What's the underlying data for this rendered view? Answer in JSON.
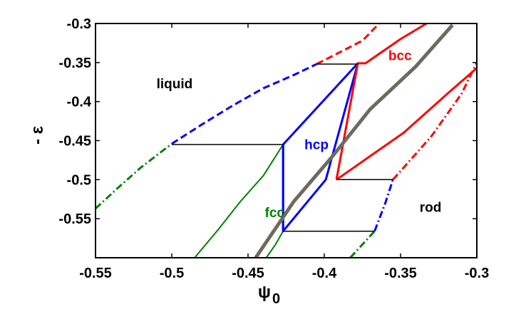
{
  "chart_data": {
    "type": "line",
    "xlabel": "ψ",
    "xlabel_sub": "0",
    "ylabel": "- ε",
    "xlim": [
      -0.55,
      -0.3
    ],
    "ylim": [
      -0.6,
      -0.3
    ],
    "xticks": [
      "-0.55",
      "-0.5",
      "-0.45",
      "-0.4",
      "-0.35",
      "-0.3"
    ],
    "yticks": [
      "-0.3",
      "-0.35",
      "-0.4",
      "-0.45",
      "-0.5",
      "-0.55"
    ],
    "grid": false,
    "region_labels": [
      {
        "text": "liquid",
        "color": "#000000",
        "x": -0.51,
        "y": -0.383
      },
      {
        "text": "bcc",
        "color": "#ff0000",
        "x": -0.358,
        "y": -0.347
      },
      {
        "text": "hcp",
        "color": "#0000ff",
        "x": -0.413,
        "y": -0.461
      },
      {
        "text": "fcc",
        "color": "#008000",
        "x": -0.439,
        "y": -0.548
      },
      {
        "text": "rod",
        "color": "#000000",
        "x": -0.3375,
        "y": -0.541
      }
    ],
    "series": [
      {
        "color": "#0000ff",
        "style": "dashed",
        "width": 3,
        "points": [
          [
            -0.5,
            -0.454
          ],
          [
            -0.48,
            -0.429
          ],
          [
            -0.46,
            -0.405
          ],
          [
            -0.44,
            -0.383
          ],
          [
            -0.42,
            -0.366
          ],
          [
            -0.405,
            -0.352
          ]
        ]
      },
      {
        "color": "#ff0000",
        "style": "dashed",
        "width": 3,
        "points": [
          [
            -0.405,
            -0.352
          ],
          [
            -0.39,
            -0.337
          ],
          [
            -0.375,
            -0.322
          ],
          [
            -0.364,
            -0.3
          ]
        ]
      },
      {
        "color": "#008000",
        "style": "dashdot",
        "width": 3,
        "points": [
          [
            -0.55,
            -0.537
          ],
          [
            -0.535,
            -0.51
          ],
          [
            -0.52,
            -0.484
          ],
          [
            -0.5,
            -0.454
          ]
        ]
      },
      {
        "color": "#008000",
        "style": "solid",
        "width": 2,
        "points": [
          [
            -0.427,
            -0.455
          ],
          [
            -0.44,
            -0.495
          ],
          [
            -0.455,
            -0.528
          ],
          [
            -0.47,
            -0.565
          ],
          [
            -0.485,
            -0.6
          ]
        ]
      },
      {
        "color": "#008000",
        "style": "solid",
        "width": 3,
        "points": [
          [
            -0.427,
            -0.455
          ],
          [
            -0.427,
            -0.566
          ]
        ]
      },
      {
        "color": "#008000",
        "style": "solid",
        "width": 2,
        "points": [
          [
            -0.427,
            -0.566
          ],
          [
            -0.432,
            -0.583
          ],
          [
            -0.438,
            -0.6
          ]
        ]
      },
      {
        "color": "#0000ff",
        "style": "solid",
        "width": 3,
        "points": [
          [
            -0.427,
            -0.455
          ],
          [
            -0.378,
            -0.351
          ],
          [
            -0.399,
            -0.5
          ],
          [
            -0.427,
            -0.566
          ],
          [
            -0.427,
            -0.455
          ]
        ]
      },
      {
        "color": "#ff0000",
        "style": "solid",
        "width": 3,
        "points": [
          [
            -0.392,
            -0.5
          ],
          [
            -0.378,
            -0.351
          ],
          [
            -0.373,
            -0.351
          ],
          [
            -0.35,
            -0.32
          ],
          [
            -0.333,
            -0.3
          ]
        ]
      },
      {
        "color": "#ff0000",
        "style": "solid",
        "width": 3,
        "points": [
          [
            -0.392,
            -0.5
          ],
          [
            -0.348,
            -0.44
          ],
          [
            -0.317,
            -0.386
          ],
          [
            -0.297,
            -0.352
          ],
          [
            -0.281,
            -0.3
          ]
        ]
      },
      {
        "color": "#6e6b5e",
        "style": "solid",
        "width": 5,
        "points": [
          [
            -0.445,
            -0.6
          ],
          [
            -0.42,
            -0.528
          ],
          [
            -0.395,
            -0.471
          ],
          [
            -0.37,
            -0.41
          ],
          [
            -0.34,
            -0.355
          ],
          [
            -0.316,
            -0.302
          ]
        ]
      },
      {
        "color": "#ff0000",
        "style": "dashdot",
        "width": 3,
        "points": [
          [
            -0.355,
            -0.5
          ],
          [
            -0.33,
            -0.445
          ],
          [
            -0.31,
            -0.39
          ],
          [
            -0.3,
            -0.35
          ]
        ]
      },
      {
        "color": "#0000ff",
        "style": "dashdot",
        "width": 3,
        "points": [
          [
            -0.367,
            -0.566
          ],
          [
            -0.36,
            -0.53
          ],
          [
            -0.355,
            -0.5
          ]
        ]
      },
      {
        "color": "#008000",
        "style": "dashdot",
        "width": 3,
        "points": [
          [
            -0.383,
            -0.6
          ],
          [
            -0.367,
            -0.566
          ]
        ]
      },
      {
        "color": "#000000",
        "style": "solid",
        "width": 1.5,
        "points": [
          [
            -0.405,
            -0.352
          ],
          [
            -0.378,
            -0.352
          ]
        ]
      },
      {
        "color": "#000000",
        "style": "solid",
        "width": 1.5,
        "points": [
          [
            -0.5,
            -0.455
          ],
          [
            -0.427,
            -0.455
          ]
        ]
      },
      {
        "color": "#000000",
        "style": "solid",
        "width": 1.5,
        "points": [
          [
            -0.392,
            -0.5
          ],
          [
            -0.355,
            -0.5
          ]
        ]
      },
      {
        "color": "#000000",
        "style": "solid",
        "width": 1.5,
        "points": [
          [
            -0.427,
            -0.566
          ],
          [
            -0.367,
            -0.566
          ]
        ]
      }
    ]
  }
}
